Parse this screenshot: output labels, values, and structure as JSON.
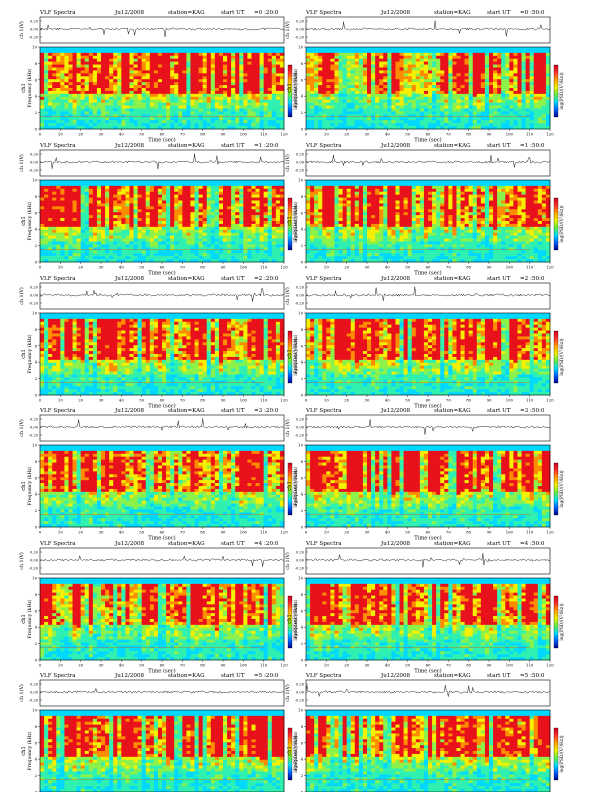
{
  "page": {
    "panel_title": "VLF Spectra",
    "date": "Ju12/2008",
    "station": "station=KAG",
    "start_prefix": "start  UT"
  },
  "chart_data": [
    {
      "type": "heatmap",
      "start_time": "=0 :20:0",
      "waveform_ylabel": "ch 1(V)",
      "waveform_yticks": [
        "0.20",
        "0.00",
        "-0.20"
      ],
      "ylabel_channel": "ch1",
      "ylabel": "Frequency (kHz)",
      "yticks": [
        0,
        2,
        4,
        6,
        8,
        10
      ],
      "ylim": [
        0,
        10
      ],
      "xlabel": "Time (sec)",
      "xticks": [
        0,
        10,
        20,
        30,
        40,
        50,
        60,
        70,
        80,
        90,
        100,
        110,
        120
      ],
      "xlim": [
        0,
        120
      ],
      "colorbar_label": "log(PSD/(V²/Hz))"
    },
    {
      "type": "heatmap",
      "start_time": "=0 :50:0",
      "waveform_ylabel": "ch 1(V)",
      "waveform_yticks": [
        "0.20",
        "0.00",
        "-0.20"
      ],
      "ylabel_channel": "ch1",
      "ylabel": "Frequency (kHz)",
      "yticks": [
        0,
        2,
        4,
        6,
        8,
        10
      ],
      "ylim": [
        0,
        10
      ],
      "xlabel": "Time (sec)",
      "xticks": [
        0,
        10,
        20,
        30,
        40,
        50,
        60,
        70,
        80,
        90,
        100,
        110,
        120
      ],
      "xlim": [
        0,
        120
      ],
      "colorbar_label": "log(PSD/(V²/Hz))"
    },
    {
      "type": "heatmap",
      "start_time": "=1 :20:0",
      "waveform_ylabel": "ch 1(V)",
      "waveform_yticks": [
        "0.20",
        "0.00",
        "-0.20"
      ],
      "ylabel_channel": "ch1",
      "ylabel": "Frequency (kHz)",
      "yticks": [
        0,
        2,
        4,
        6,
        8,
        10
      ],
      "ylim": [
        0,
        10
      ],
      "xlabel": "Time (sec)",
      "xticks": [
        0,
        10,
        20,
        30,
        40,
        50,
        60,
        70,
        80,
        90,
        100,
        110,
        120
      ],
      "xlim": [
        0,
        120
      ],
      "colorbar_label": "log(PSD/(V²/Hz))"
    },
    {
      "type": "heatmap",
      "start_time": "=1 :50:0",
      "waveform_ylabel": "ch 1(V)",
      "waveform_yticks": [
        "0.20",
        "0.00",
        "-0.20"
      ],
      "ylabel_channel": "ch1",
      "ylabel": "Frequency (kHz)",
      "yticks": [
        0,
        2,
        4,
        6,
        8,
        10
      ],
      "ylim": [
        0,
        10
      ],
      "xlabel": "Time (sec)",
      "xticks": [
        0,
        10,
        20,
        30,
        40,
        50,
        60,
        70,
        80,
        90,
        100,
        110,
        120
      ],
      "xlim": [
        0,
        120
      ],
      "colorbar_label": "log(PSD/(V²/Hz))"
    },
    {
      "type": "heatmap",
      "start_time": "=2 :20:0",
      "waveform_ylabel": "ch 1(V)",
      "waveform_yticks": [
        "0.20",
        "0.00",
        "-0.20"
      ],
      "ylabel_channel": "ch1",
      "ylabel": "Frequency (kHz)",
      "yticks": [
        0,
        2,
        4,
        6,
        8,
        10
      ],
      "ylim": [
        0,
        10
      ],
      "xlabel": "Time (sec)",
      "xticks": [
        0,
        10,
        20,
        30,
        40,
        50,
        60,
        70,
        80,
        90,
        100,
        110,
        120
      ],
      "xlim": [
        0,
        120
      ],
      "colorbar_label": "log(PSD/(V²/Hz))"
    },
    {
      "type": "heatmap",
      "start_time": "=2 :50:0",
      "waveform_ylabel": "ch 1(V)",
      "waveform_yticks": [
        "0.20",
        "0.00",
        "-0.20"
      ],
      "ylabel_channel": "ch1",
      "ylabel": "Frequency (kHz)",
      "yticks": [
        0,
        2,
        4,
        6,
        8,
        10
      ],
      "ylim": [
        0,
        10
      ],
      "xlabel": "Time (sec)",
      "xticks": [
        0,
        10,
        20,
        30,
        40,
        50,
        60,
        70,
        80,
        90,
        100,
        110,
        120
      ],
      "xlim": [
        0,
        120
      ],
      "colorbar_label": "log(PSD/(V²/Hz))"
    },
    {
      "type": "heatmap",
      "start_time": "=3 :20:0",
      "waveform_ylabel": "ch 1(V)",
      "waveform_yticks": [
        "0.20",
        "0.00",
        "-0.20"
      ],
      "ylabel_channel": "ch1",
      "ylabel": "Frequency (kHz)",
      "yticks": [
        0,
        2,
        4,
        6,
        8,
        10
      ],
      "ylim": [
        0,
        10
      ],
      "xlabel": "Time (sec)",
      "xticks": [
        0,
        10,
        20,
        30,
        40,
        50,
        60,
        70,
        80,
        90,
        100,
        110,
        120
      ],
      "xlim": [
        0,
        120
      ],
      "colorbar_label": "log(PSD/(V²/Hz))"
    },
    {
      "type": "heatmap",
      "start_time": "=3 :50:0",
      "waveform_ylabel": "ch 1(V)",
      "waveform_yticks": [
        "0.20",
        "0.00",
        "-0.20"
      ],
      "ylabel_channel": "ch1",
      "ylabel": "Frequency (kHz)",
      "yticks": [
        0,
        2,
        4,
        6,
        8,
        10
      ],
      "ylim": [
        0,
        10
      ],
      "xlabel": "Time (sec)",
      "xticks": [
        0,
        10,
        20,
        30,
        40,
        50,
        60,
        70,
        80,
        90,
        100,
        110,
        120
      ],
      "xlim": [
        0,
        120
      ],
      "colorbar_label": "log(PSD/(V²/Hz))"
    },
    {
      "type": "heatmap",
      "start_time": "=4 :20:0",
      "waveform_ylabel": "ch 1(V)",
      "waveform_yticks": [
        "0.20",
        "0.00",
        "-0.20"
      ],
      "ylabel_channel": "ch1",
      "ylabel": "Frequency (kHz)",
      "yticks": [
        0,
        2,
        4,
        6,
        8,
        10
      ],
      "ylim": [
        0,
        10
      ],
      "xlabel": "Time (sec)",
      "xticks": [
        0,
        10,
        20,
        30,
        40,
        50,
        60,
        70,
        80,
        90,
        100,
        110,
        120
      ],
      "xlim": [
        0,
        120
      ],
      "colorbar_label": "log(PSD/(V²/Hz))"
    },
    {
      "type": "heatmap",
      "start_time": "=4 :50:0",
      "waveform_ylabel": "ch 1(V)",
      "waveform_yticks": [
        "0.20",
        "0.00",
        "-0.20"
      ],
      "ylabel_channel": "ch1",
      "ylabel": "Frequency (kHz)",
      "yticks": [
        0,
        2,
        4,
        6,
        8,
        10
      ],
      "ylim": [
        0,
        10
      ],
      "xlabel": "Time (sec)",
      "xticks": [
        0,
        10,
        20,
        30,
        40,
        50,
        60,
        70,
        80,
        90,
        100,
        110,
        120
      ],
      "xlim": [
        0,
        120
      ],
      "colorbar_label": "log(PSD/(V²/Hz))"
    },
    {
      "type": "heatmap",
      "start_time": "=5 :20:0",
      "waveform_ylabel": "ch 1(V)",
      "waveform_yticks": [
        "0.20",
        "0.00",
        "-0.20"
      ],
      "ylabel_channel": "ch1",
      "ylabel": "Frequency (kHz)",
      "yticks": [
        0,
        2,
        4,
        6,
        8,
        10
      ],
      "ylim": [
        0,
        10
      ],
      "xlabel": "Time (sec)",
      "xticks": [
        0,
        10,
        20,
        30,
        40,
        50,
        60,
        70,
        80,
        90,
        100,
        110,
        120
      ],
      "xlim": [
        0,
        120
      ],
      "colorbar_label": "log(PSD/(V²/Hz))"
    },
    {
      "type": "heatmap",
      "start_time": "=5 :50:0",
      "waveform_ylabel": "ch 1(V)",
      "waveform_yticks": [
        "0.20",
        "0.00",
        "-0.20"
      ],
      "ylabel_channel": "ch1",
      "ylabel": "Frequency (kHz)",
      "yticks": [
        0,
        2,
        4,
        6,
        8,
        10
      ],
      "ylim": [
        0,
        10
      ],
      "xlabel": "Time (sec)",
      "xticks": [
        0,
        10,
        20,
        30,
        40,
        50,
        60,
        70,
        80,
        90,
        100,
        110,
        120
      ],
      "xlim": [
        0,
        120
      ],
      "colorbar_label": "log(PSD/(V²/Hz))"
    }
  ],
  "colors": {
    "spectrogram_bands": [
      "#00d8ff",
      "#2ef0b0",
      "#8cf24a",
      "#f5f000",
      "#ff8c00",
      "#e8101a"
    ],
    "colorbar_gradient": [
      "#d0001a",
      "#ff3030",
      "#ffa000",
      "#f0f000",
      "#60f040",
      "#00e0ff",
      "#0060ff",
      "#000090"
    ],
    "waveform": "#000000"
  }
}
